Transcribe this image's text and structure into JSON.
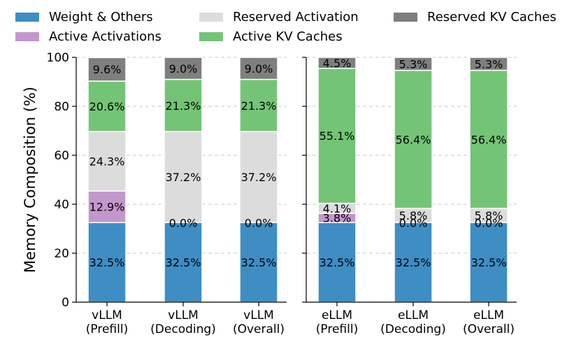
{
  "chart_data": {
    "type": "bar",
    "stacked": true,
    "ylabel": "Memory Composition (%)",
    "ylim": [
      0,
      100
    ],
    "yticks": [
      0,
      20,
      40,
      60,
      80,
      100
    ],
    "grid": true,
    "legend_position": "top",
    "panels": [
      {
        "categories": [
          "vLLM\n(Prefill)",
          "vLLM\n(Decoding)",
          "vLLM\n(Overall)"
        ],
        "series": [
          {
            "name": "Weight & Others",
            "color": "#3e8ec4",
            "values": [
              32.5,
              32.5,
              32.5
            ]
          },
          {
            "name": "Active Activations",
            "color": "#c397cc",
            "values": [
              12.9,
              0.0,
              0.0
            ]
          },
          {
            "name": "Reserved Activation",
            "color": "#dcdcdc",
            "values": [
              24.3,
              37.2,
              37.2
            ]
          },
          {
            "name": "Active KV Caches",
            "color": "#74c476",
            "values": [
              20.6,
              21.3,
              21.3
            ]
          },
          {
            "name": "Reserved KV Caches",
            "color": "#7f7f7f",
            "values": [
              9.6,
              9.0,
              9.0
            ]
          }
        ]
      },
      {
        "categories": [
          "eLLM\n(Prefill)",
          "eLLM\n(Decoding)",
          "eLLM\n(Overall)"
        ],
        "series": [
          {
            "name": "Weight & Others",
            "color": "#3e8ec4",
            "values": [
              32.5,
              32.5,
              32.5
            ]
          },
          {
            "name": "Active Activations",
            "color": "#c397cc",
            "values": [
              3.8,
              0.0,
              0.0
            ]
          },
          {
            "name": "Reserved Activation",
            "color": "#dcdcdc",
            "values": [
              4.1,
              5.8,
              5.8
            ]
          },
          {
            "name": "Active KV Caches",
            "color": "#74c476",
            "values": [
              55.1,
              56.4,
              56.4
            ]
          },
          {
            "name": "Reserved KV Caches",
            "color": "#7f7f7f",
            "values": [
              4.5,
              5.3,
              5.3
            ]
          }
        ]
      }
    ],
    "legend": [
      {
        "name": "Weight & Others",
        "color": "#3e8ec4"
      },
      {
        "name": "Reserved Activation",
        "color": "#dcdcdc"
      },
      {
        "name": "Reserved KV Caches",
        "color": "#7f7f7f"
      },
      {
        "name": "Active Activations",
        "color": "#c397cc"
      },
      {
        "name": "Active KV Caches",
        "color": "#74c476"
      }
    ]
  }
}
